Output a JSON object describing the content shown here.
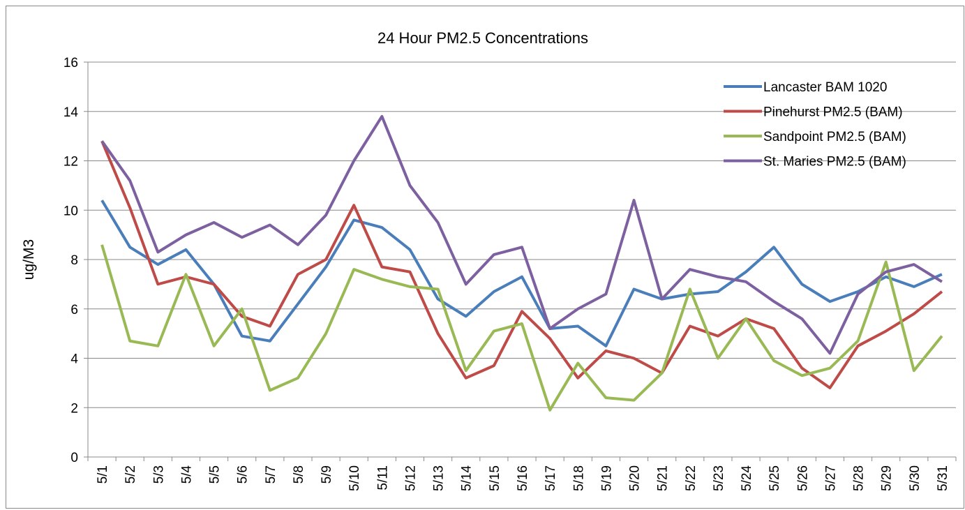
{
  "chart_data": {
    "type": "line",
    "title": "24 Hour PM2.5 Concentrations",
    "y_label": "ug/M3",
    "categories": [
      "5/1",
      "5/2",
      "5/3",
      "5/4",
      "5/5",
      "5/6",
      "5/7",
      "5/8",
      "5/9",
      "5/10",
      "5/11",
      "5/12",
      "5/13",
      "5/14",
      "5/15",
      "5/16",
      "5/17",
      "5/18",
      "5/19",
      "5/20",
      "5/21",
      "5/22",
      "5/23",
      "5/24",
      "5/25",
      "5/26",
      "5/27",
      "5/28",
      "5/29",
      "5/30",
      "5/31"
    ],
    "series": [
      {
        "name": "Lancaster BAM 1020",
        "color": "#4a7ebb",
        "values": [
          10.4,
          8.5,
          7.8,
          8.4,
          7.0,
          4.9,
          4.7,
          6.2,
          7.7,
          9.6,
          9.3,
          8.4,
          6.4,
          5.7,
          6.7,
          7.3,
          5.2,
          5.3,
          4.5,
          6.8,
          6.4,
          6.6,
          6.7,
          7.5,
          8.5,
          7.0,
          6.3,
          6.7,
          7.3,
          6.9,
          7.4
        ]
      },
      {
        "name": "Pinehurst PM2.5 (BAM)",
        "color": "#be4b48",
        "values": [
          12.8,
          10.1,
          7.0,
          7.3,
          7.0,
          5.7,
          5.3,
          7.4,
          8.0,
          10.2,
          7.7,
          7.5,
          5.0,
          3.2,
          3.7,
          5.9,
          4.8,
          3.2,
          4.3,
          4.0,
          3.4,
          5.3,
          4.9,
          5.6,
          5.2,
          3.6,
          2.8,
          4.5,
          5.1,
          5.8,
          6.7
        ]
      },
      {
        "name": "Sandpoint PM2.5 (BAM)",
        "color": "#98b954",
        "values": [
          8.6,
          4.7,
          4.5,
          7.4,
          4.5,
          6.0,
          2.7,
          3.2,
          5.0,
          7.6,
          7.2,
          6.9,
          6.8,
          3.5,
          5.1,
          5.4,
          1.9,
          3.8,
          2.4,
          2.3,
          3.4,
          6.8,
          4.0,
          5.6,
          3.9,
          3.3,
          3.6,
          4.7,
          7.9,
          3.5,
          4.9
        ]
      },
      {
        "name": "St. Maries PM2.5 (BAM)",
        "color": "#7d60a0",
        "values": [
          12.8,
          11.2,
          8.3,
          9.0,
          9.5,
          8.9,
          9.4,
          8.6,
          9.8,
          12.0,
          13.8,
          11.0,
          9.5,
          7.0,
          8.2,
          8.5,
          5.2,
          6.0,
          6.6,
          10.4,
          6.4,
          7.6,
          7.3,
          7.1,
          6.3,
          5.6,
          4.2,
          6.6,
          7.5,
          7.8,
          7.1
        ]
      }
    ],
    "ylim": [
      0,
      16
    ],
    "yticks": [
      0,
      2,
      4,
      6,
      8,
      10,
      12,
      14,
      16
    ],
    "grid": true,
    "legend": "top-right"
  }
}
